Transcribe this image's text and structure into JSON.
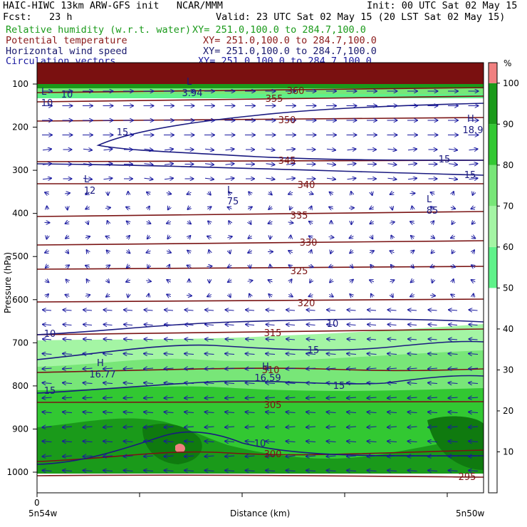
{
  "header": {
    "left_line1": "HAIC-HIWC 13km ARW-GFS init   NCAR/MMM",
    "right_line1": "Init: 00 UTC Sat 02 May 15",
    "left_line2": "Fcst:   23 h",
    "right_line2": "Valid: 23 UTC Sat 02 May 15 (20 LST Sat 02 May 15)",
    "fields": [
      {
        "name": "Relative humidity (w.r.t. water)",
        "xy": "XY= 251.0,100.0 to 284.7,100.0",
        "color": "#1a9a1a"
      },
      {
        "name": "Potential temperature",
        "xy": "XY= 251.0,100.0 to 284.7,100.0",
        "color": "#8b1a1a"
      },
      {
        "name": "Horizontal wind speed",
        "xy": "XY= 251.0,100.0 to 284.7,100.0",
        "color": "#1a1a6e"
      },
      {
        "name": "Circulation vectors",
        "xy": "XY= 251.0,100.0 to 284.7,100.0",
        "color": "#1a1aa0"
      }
    ]
  },
  "chart_data": {
    "type": "heatmap",
    "title": "Relative humidity (w.r.t. water), Potential temperature, Horizontal wind speed, Circulation vectors",
    "ylabel": "Pressure (hPa)",
    "xlabel": "Distance (km)",
    "x_start_label": "0",
    "x_left_label": "5n54w",
    "x_right_label": "5n50w",
    "ylim": [
      1050,
      70
    ],
    "y_ticks": [
      100,
      200,
      300,
      400,
      500,
      600,
      700,
      800,
      900,
      1000
    ],
    "colorbar": {
      "unit": "%",
      "ticks": [
        10,
        20,
        30,
        40,
        50,
        60,
        70,
        80,
        90,
        100
      ],
      "bands": [
        {
          "from": 50,
          "to": 60,
          "color": "#5ff28a"
        },
        {
          "from": 60,
          "to": 70,
          "color": "#a4f5a4"
        },
        {
          "from": 70,
          "to": 80,
          "color": "#78e678"
        },
        {
          "from": 80,
          "to": 90,
          "color": "#32c832"
        },
        {
          "from": 90,
          "to": 100,
          "color": "#1a9a1a"
        },
        {
          "from": 100,
          "to": 105,
          "color": "#f08080"
        }
      ]
    },
    "theta_labels": [
      "360",
      "355",
      "350",
      "345",
      "340",
      "335",
      "330",
      "325",
      "320",
      "315",
      "310",
      "305",
      "300",
      "295"
    ],
    "wind_labels": [
      "10",
      "15",
      "15",
      "15",
      "10",
      "10",
      "15",
      "15",
      "15",
      "10"
    ],
    "extrema": [
      {
        "type": "L",
        "value": "3.94"
      },
      {
        "type": "L",
        "value": "10"
      },
      {
        "type": "H",
        "value": "18.9"
      },
      {
        "type": "L",
        "value": "12"
      },
      {
        "type": "L",
        "value": "75"
      },
      {
        "type": "L",
        "value": "85"
      },
      {
        "type": "H",
        "value": "16.77"
      },
      {
        "type": "H",
        "value": "16.59"
      }
    ]
  }
}
